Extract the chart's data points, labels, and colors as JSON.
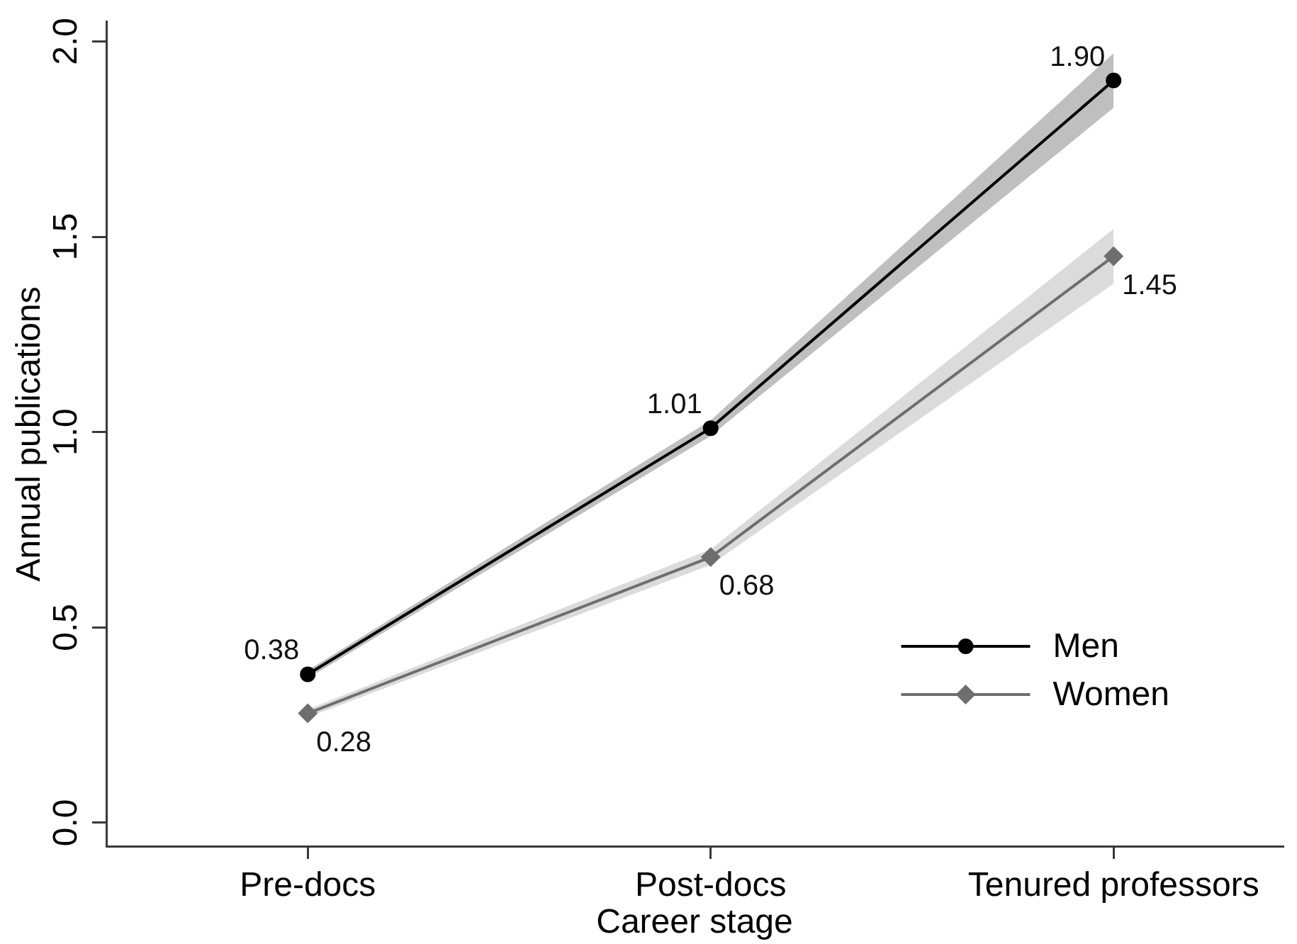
{
  "chart_data": {
    "type": "line",
    "xlabel": "Career stage",
    "ylabel": "Annual publications",
    "categories": [
      "Pre-docs",
      "Post-docs",
      "Tenured professors"
    ],
    "series": [
      {
        "name": "Men",
        "color": "#000000",
        "marker": "circle",
        "values": [
          0.38,
          1.01,
          1.9
        ],
        "lower": [
          0.37,
          0.99,
          1.83
        ],
        "upper": [
          0.39,
          1.03,
          1.97
        ],
        "value_labels": [
          "0.38",
          "1.01",
          "1.90"
        ]
      },
      {
        "name": "Women",
        "color": "#6e6e6e",
        "marker": "diamond",
        "values": [
          0.28,
          0.68,
          1.45
        ],
        "lower": [
          0.27,
          0.66,
          1.38
        ],
        "upper": [
          0.29,
          0.7,
          1.52
        ],
        "value_labels": [
          "0.28",
          "0.68",
          "1.45"
        ]
      }
    ],
    "ylim": [
      -0.06,
      2.05
    ],
    "yticks": [
      {
        "value": 0,
        "label": "0.0"
      },
      0.5,
      {
        "value": 1,
        "label": "1.0"
      },
      1.5,
      {
        "value": 2,
        "label": "2.0"
      }
    ],
    "grid": false,
    "legend": "bottom right"
  }
}
